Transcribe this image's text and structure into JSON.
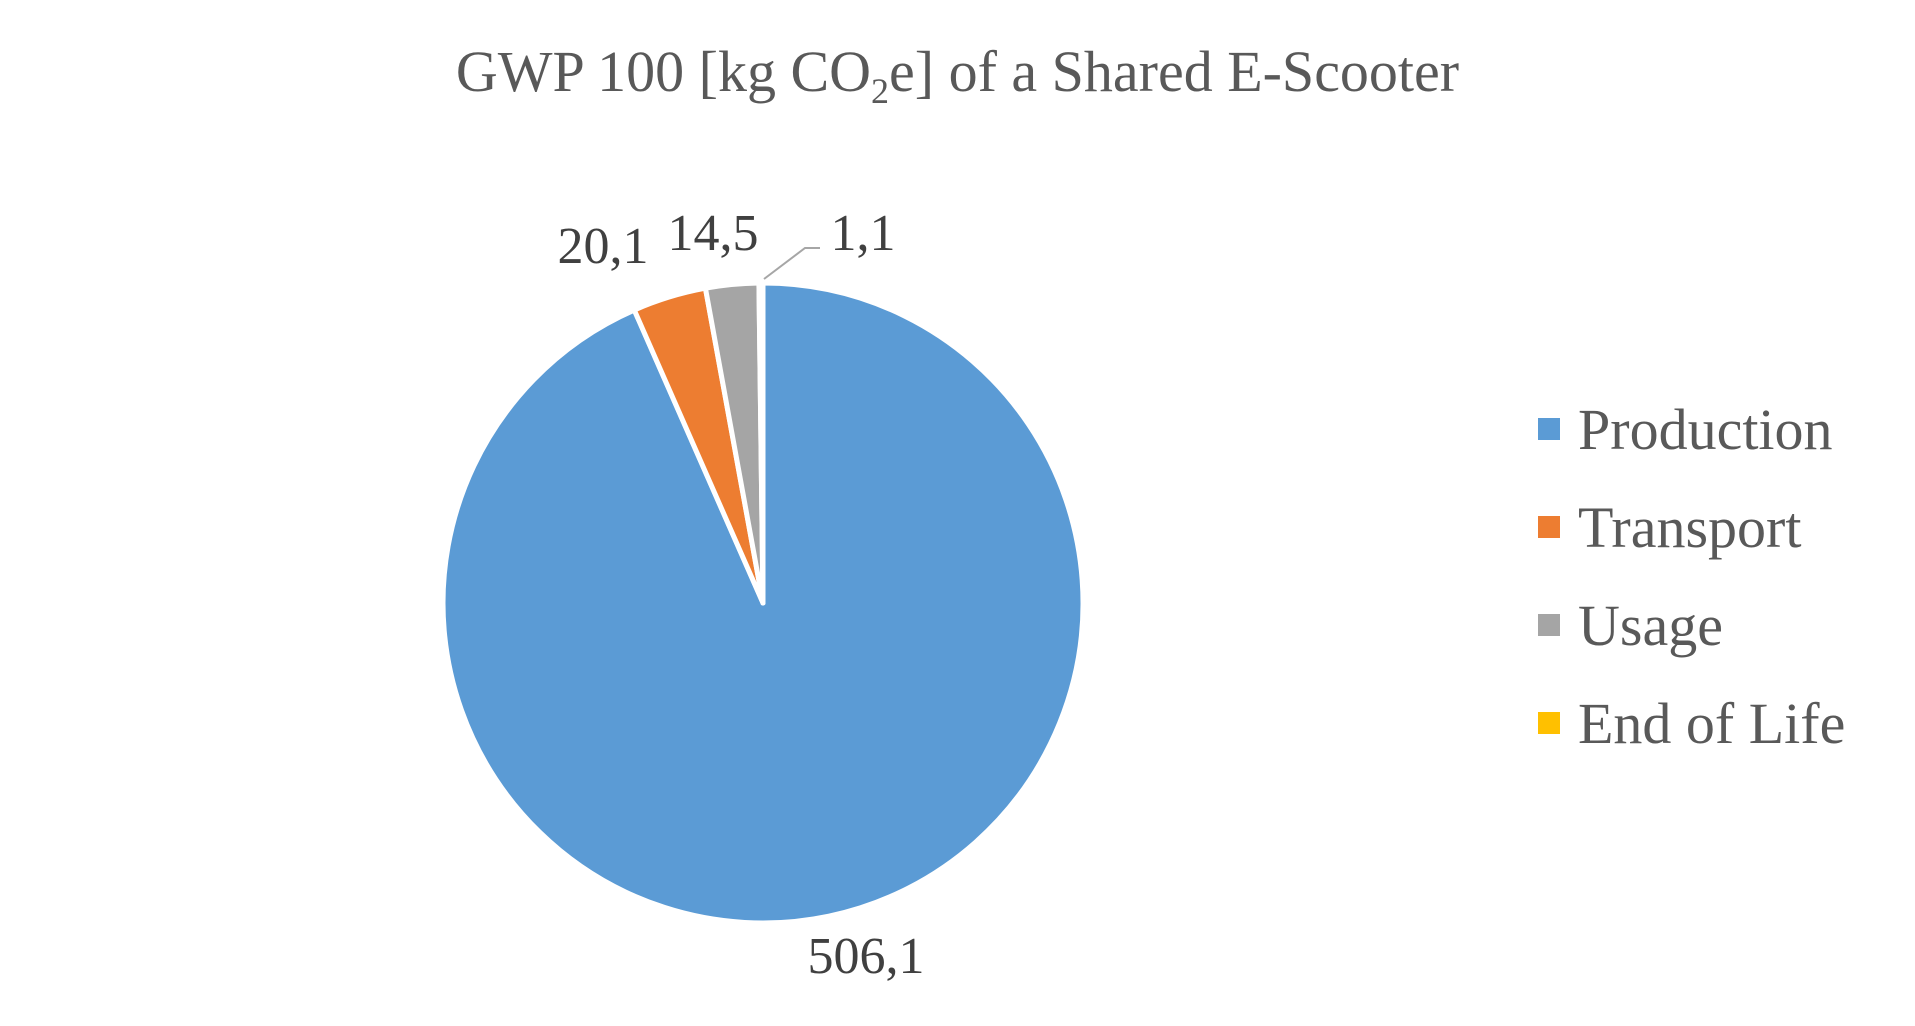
{
  "title": {
    "pre": "GWP 100 [kg CO",
    "sub": "2",
    "post": "e] of a Shared E-Scooter"
  },
  "chart_data": {
    "type": "pie",
    "title": "GWP 100 [kg CO2e] of a Shared E-Scooter",
    "legend_position": "right",
    "start_angle_deg": 0,
    "direction": "clockwise",
    "slices": [
      {
        "name": "Production",
        "value": 506.1,
        "label": "506,1",
        "color": "#5B9BD5"
      },
      {
        "name": "Transport",
        "value": 20.1,
        "label": "20,1",
        "color": "#ED7D31"
      },
      {
        "name": "Usage",
        "value": 14.5,
        "label": "14,5",
        "color": "#A5A5A5"
      },
      {
        "name": "End of Life",
        "value": 1.1,
        "label": "1,1",
        "color": "#FFC000"
      }
    ]
  }
}
